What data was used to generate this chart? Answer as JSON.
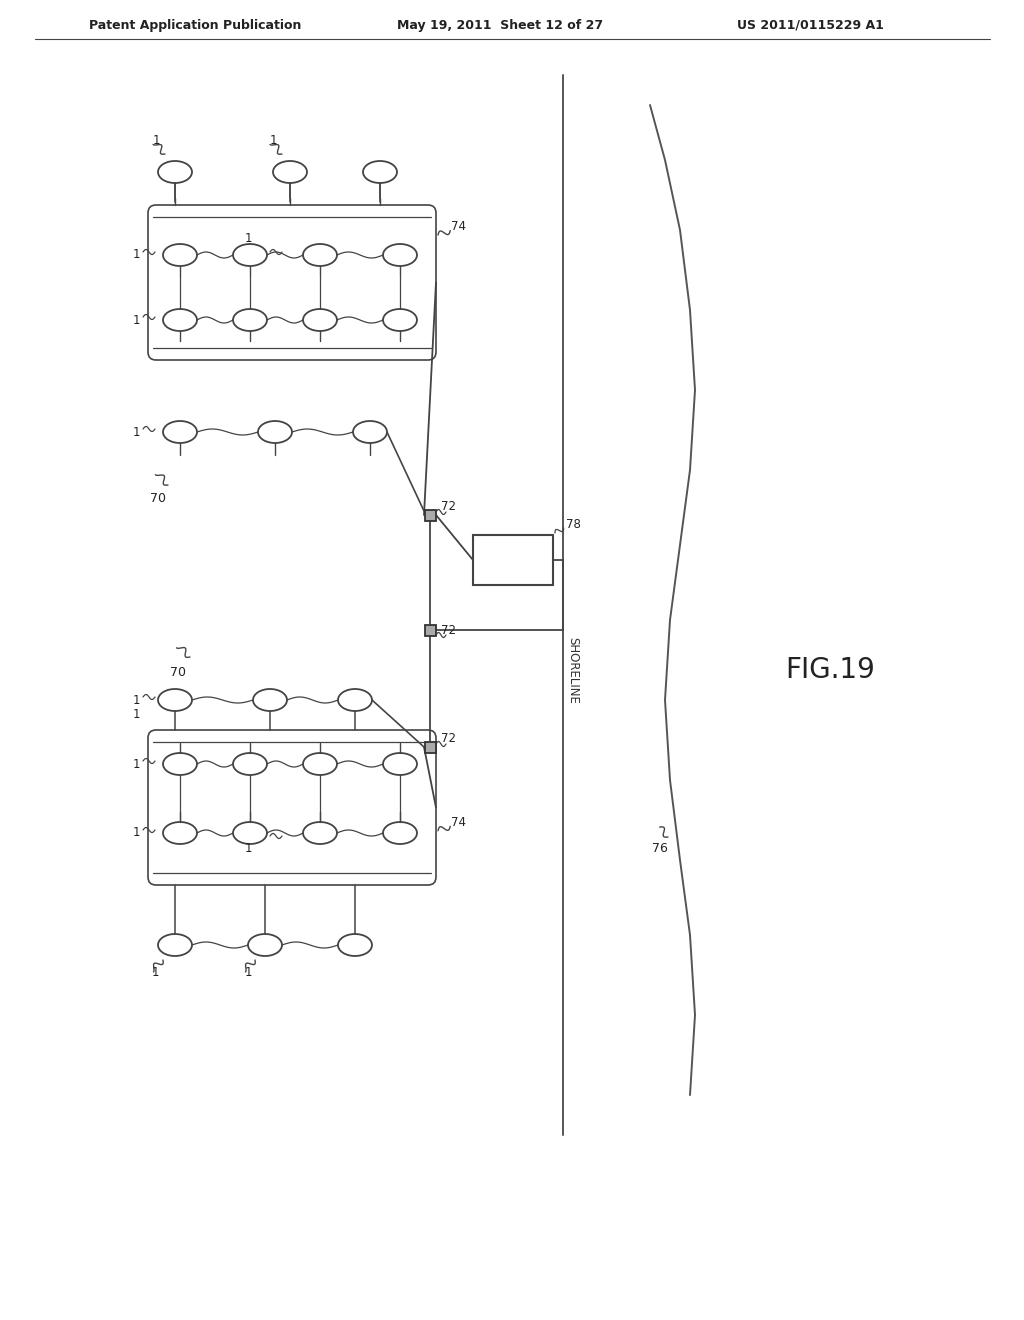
{
  "title_left": "Patent Application Publication",
  "title_mid": "May 19, 2011  Sheet 12 of 27",
  "title_right": "US 2011/0115229 A1",
  "fig_label": "FIG.19",
  "bg_color": "#ffffff",
  "line_color": "#444444"
}
